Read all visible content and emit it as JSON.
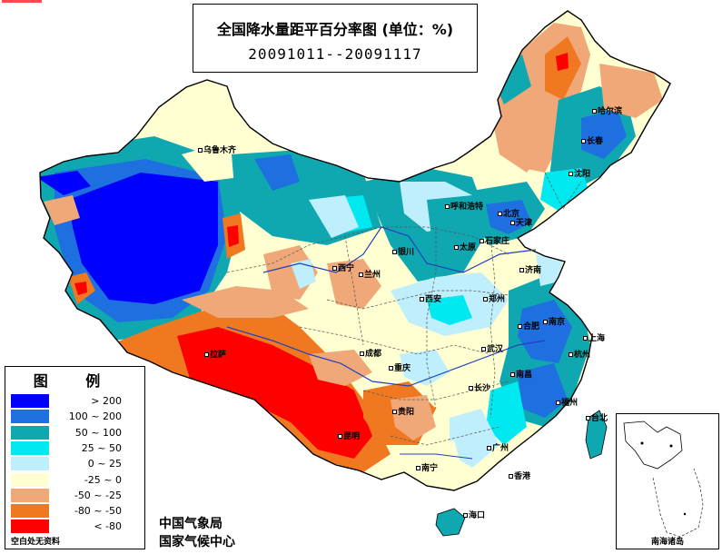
{
  "title": "全国降水量距平百分率图 (单位：%)",
  "date_range": "20091011--20091117",
  "legend": {
    "title": "图 例",
    "items": [
      {
        "label": "> 200",
        "color": "#0000ff"
      },
      {
        "label": "100 ~ 200",
        "color": "#1e6fe0"
      },
      {
        "label": "50 ~ 100",
        "color": "#10a8b0"
      },
      {
        "label": "25 ~ 50",
        "color": "#00e8f0"
      },
      {
        "label": "0 ~ 25",
        "color": "#bfeefc"
      },
      {
        "label": "-25 ~ 0",
        "color": "#ffffd2"
      },
      {
        "label": "-50 ~ -25",
        "color": "#f0a878"
      },
      {
        "label": "-80 ~ -50",
        "color": "#f07820"
      },
      {
        "label": "< -80",
        "color": "#ff0000"
      }
    ],
    "note": "空白处无资料"
  },
  "credits": [
    "中国气象局",
    "国家气候中心"
  ],
  "inset_label": "南海诸岛",
  "cities": [
    {
      "name": "乌鲁木齐"
    },
    {
      "name": "哈尔滨"
    },
    {
      "name": "长春"
    },
    {
      "name": "沈阳"
    },
    {
      "name": "呼和浩特"
    },
    {
      "name": "北京"
    },
    {
      "name": "天津"
    },
    {
      "name": "石家庄"
    },
    {
      "name": "太原"
    },
    {
      "name": "银川"
    },
    {
      "name": "济南"
    },
    {
      "name": "西宁"
    },
    {
      "name": "兰州"
    },
    {
      "name": "西安"
    },
    {
      "name": "郑州"
    },
    {
      "name": "合肥"
    },
    {
      "name": "南京"
    },
    {
      "name": "上海"
    },
    {
      "name": "拉萨"
    },
    {
      "name": "成都"
    },
    {
      "name": "武汉"
    },
    {
      "name": "重庆"
    },
    {
      "name": "杭州"
    },
    {
      "name": "长沙"
    },
    {
      "name": "南昌"
    },
    {
      "name": "贵阳"
    },
    {
      "name": "福州"
    },
    {
      "name": "台北"
    },
    {
      "name": "昆明"
    },
    {
      "name": "广州"
    },
    {
      "name": "南宁"
    },
    {
      "name": "香港"
    },
    {
      "name": "海口"
    }
  ]
}
